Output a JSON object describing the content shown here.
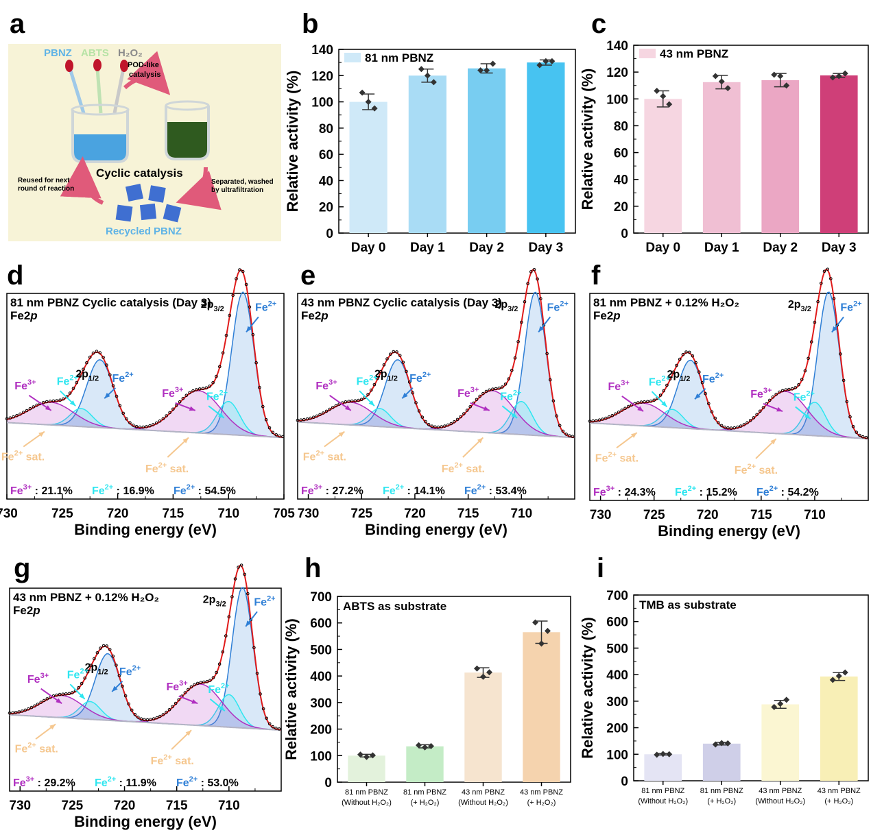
{
  "chart_data": [
    {
      "id": "a",
      "type": "diagram",
      "panel_label": "a",
      "labels": {
        "pbnz": "PBNZ",
        "abts": "ABTS",
        "h2o2": "H₂O₂",
        "pod": "POD-like",
        "catalysis": "catalysis",
        "cyclic": "Cyclic catalysis",
        "reused1": "Reused for next",
        "reused2": "round of reaction",
        "sep1": "Separated, washed",
        "sep2": "by ultrafiltration",
        "recycled": "Recycled PBNZ"
      },
      "colors": {
        "background": "#f7f3d7",
        "pbnz_text": "#5fb3e6",
        "abts_text": "#b7e3a6",
        "h2o2_text": "#8a8a8a",
        "blue_liquid": "#4aa3e0",
        "green_liquid": "#2f5a1f",
        "arrow": "#e05a7a",
        "cube": "#3f6fd1"
      }
    },
    {
      "id": "b",
      "type": "bar",
      "panel_label": "b",
      "categories": [
        "Day 0",
        "Day 1",
        "Day 2",
        "Day 3"
      ],
      "values": [
        100,
        120,
        125.5,
        130
      ],
      "errors": [
        6,
        5,
        3.5,
        2
      ],
      "points": [
        [
          107,
          100,
          95
        ],
        [
          125,
          120,
          115
        ],
        [
          124,
          124,
          129
        ],
        [
          128,
          131,
          131
        ]
      ],
      "colors": [
        "#cfe9f8",
        "#a9dcf5",
        "#78cdf1",
        "#47c3f1"
      ],
      "legend": "81 nm PBNZ",
      "legend_color": "#cfe9f8",
      "ylabel": "Relative activity (%)",
      "ylim": [
        0,
        140
      ],
      "yticks": [
        0,
        20,
        40,
        60,
        80,
        100,
        120,
        140
      ]
    },
    {
      "id": "c",
      "type": "bar",
      "panel_label": "c",
      "categories": [
        "Day 0",
        "Day 1",
        "Day 2",
        "Day 3"
      ],
      "values": [
        100,
        112.5,
        114,
        117.5
      ],
      "errors": [
        6,
        5,
        5,
        1.5
      ],
      "points": [
        [
          106,
          102,
          96
        ],
        [
          117,
          113,
          108
        ],
        [
          118,
          117,
          110
        ],
        [
          116,
          117,
          119
        ]
      ],
      "colors": [
        "#f6d6e1",
        "#f0bfd3",
        "#eba7c4",
        "#cf3f78"
      ],
      "legend": "43 nm PBNZ",
      "legend_color": "#f6d6e1",
      "ylabel": "Relative activity (%)",
      "ylim": [
        0,
        140
      ],
      "yticks": [
        0,
        20,
        40,
        60,
        80,
        100,
        120,
        140
      ]
    },
    {
      "id": "d",
      "type": "line",
      "panel_label": "d",
      "title": "81 nm PBNZ Cyclic catalysis (Day 3)",
      "subtitle_pre": "Fe2",
      "subtitle_it": "p",
      "xlabel": "Binding energy (eV)",
      "xlim": [
        730,
        705
      ],
      "xticks": [
        730,
        725,
        720,
        715,
        710,
        705
      ],
      "peak_labels": {
        "p32": "2p3/2",
        "p12": "2p1/2"
      },
      "annotations": {
        "fe2": "Fe2+",
        "fe3": "Fe3+",
        "sat": "Fe2+ sat."
      },
      "stats": {
        "fe3": "Fe3+ : 21.1%",
        "fe2sat": "Fe2+ : 16.9%",
        "fe2": "Fe2+ : 54.5%"
      },
      "stat_values": {
        "fe3_text": ": 21.1%",
        "fe2sat_text": ": 16.9%",
        "fe2_text": ": 54.5%"
      },
      "components": [
        {
          "name": "Fe2+ 2p3/2",
          "center": 708.7,
          "height": 0.95,
          "width": 1.0,
          "color": "#2f7fd6"
        },
        {
          "name": "Fe2+ 2p1/2",
          "center": 721.6,
          "height": 0.45,
          "width": 1.2,
          "color": "#2f7fd6"
        },
        {
          "name": "Fe2+ sat.",
          "center": 710.0,
          "height": 0.22,
          "width": 1.0,
          "color": "#2ee6f0"
        },
        {
          "name": "Fe2+ sat.",
          "center": 723.3,
          "height": 0.12,
          "width": 1.0,
          "color": "#2ee6f0"
        },
        {
          "name": "Fe3+",
          "center": 712.7,
          "height": 0.28,
          "width": 2.0,
          "color": "#b02fc0"
        },
        {
          "name": "Fe3+",
          "center": 726.0,
          "height": 0.15,
          "width": 2.0,
          "color": "#b02fc0"
        }
      ]
    },
    {
      "id": "e",
      "type": "line",
      "panel_label": "e",
      "title": "43 nm PBNZ Cyclic catalysis (Day 3)",
      "subtitle_pre": "Fe2",
      "subtitle_it": "p",
      "xlabel": "Binding energy (eV)",
      "xlim": [
        731,
        705
      ],
      "xticks": [
        730,
        725,
        720,
        715,
        710
      ],
      "stats": {
        "fe3_text": ": 27.2%",
        "fe2sat_text": ": 14.1%",
        "fe2_text": ": 53.4%"
      }
    },
    {
      "id": "f",
      "type": "line",
      "panel_label": "f",
      "title": "81 nm PBNZ + 0.12% H₂O₂",
      "subtitle_pre": "Fe2",
      "subtitle_it": "p",
      "xlabel": "Binding energy (eV)",
      "xlim": [
        731,
        705
      ],
      "xticks": [
        730,
        725,
        720,
        715,
        710
      ],
      "stats": {
        "fe3_text": ": 24.3%",
        "fe2sat_text": ": 15.2%",
        "fe2_text": ": 54.2%"
      }
    },
    {
      "id": "g",
      "type": "line",
      "panel_label": "g",
      "title": "43 nm PBNZ + 0.12% H₂O₂",
      "subtitle_pre": "Fe2",
      "subtitle_it": "p",
      "xlabel": "Binding energy (eV)",
      "xlim": [
        731,
        705
      ],
      "xticks": [
        730,
        725,
        720,
        715,
        710
      ],
      "stats": {
        "fe3_text": ": 29.2%",
        "fe2sat_text": ": 11.9%",
        "fe2_text": ": 53.0%"
      }
    },
    {
      "id": "h",
      "type": "bar",
      "panel_label": "h",
      "title": "ABTS as substrate",
      "categories": [
        "81 nm PBNZ|(Without H₂O₂)",
        "81 nm PBNZ|(+ H₂O₂)",
        "43 nm PBNZ|(Without H₂O₂)",
        "43 nm PBNZ|(+ H₂O₂)"
      ],
      "values": [
        100,
        135,
        413,
        565
      ],
      "errors": [
        5,
        6,
        18,
        42
      ],
      "points": [
        [
          104,
          95,
          101
        ],
        [
          139,
          131,
          136
        ],
        [
          428,
          397,
          414
        ],
        [
          602,
          522,
          570
        ]
      ],
      "colors": [
        "#e3f2dc",
        "#c4ecc6",
        "#f6e4cf",
        "#f5d3ae"
      ],
      "ylabel": "Relative activity (%)",
      "ylim": [
        0,
        700
      ],
      "yticks": [
        0,
        100,
        200,
        300,
        400,
        500,
        600,
        700
      ]
    },
    {
      "id": "i",
      "type": "bar",
      "panel_label": "i",
      "title": "TMB as substrate",
      "categories": [
        "81 nm PBNZ|(Without H₂O₂)",
        "81 nm PBNZ|(+ H₂O₂)",
        "43 nm PBNZ|(Without H₂O₂)",
        "43 nm PBNZ|(+ H₂O₂)"
      ],
      "values": [
        100,
        140,
        288,
        393
      ],
      "errors": [
        3,
        5,
        15,
        15
      ],
      "points": [
        [
          98,
          101,
          100
        ],
        [
          137,
          142,
          141
        ],
        [
          278,
          290,
          305
        ],
        [
          380,
          395,
          408
        ]
      ],
      "colors": [
        "#e4e4f4",
        "#cfcfe8",
        "#fbf6d2",
        "#f8efb6"
      ],
      "ylabel": "Relative activity (%)",
      "ylim": [
        0,
        700
      ],
      "yticks": [
        0,
        100,
        200,
        300,
        400,
        500,
        600,
        700
      ]
    }
  ],
  "xps_colors": {
    "fe2": "#2f7fd6",
    "fe2sat": "#2ee6f0",
    "fe3": "#b02fc0",
    "sat_label": "#f5c78f",
    "envelope": "#e01b1b",
    "baseline": "#b4b4c4"
  }
}
